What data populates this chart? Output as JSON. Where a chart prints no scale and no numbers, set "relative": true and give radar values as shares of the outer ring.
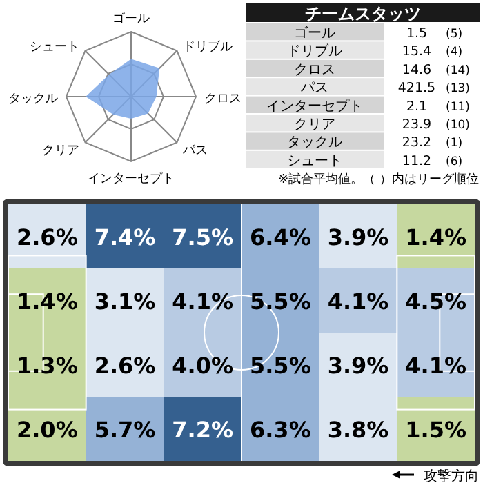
{
  "chart_data": [
    {
      "type": "radar",
      "relative": true,
      "categories": [
        "ゴール",
        "ドリブル",
        "クロス",
        "パス",
        "インターセプト",
        "クリア",
        "タックル",
        "シュート"
      ],
      "series": [
        {
          "color": "#7aa6e6",
          "values": [
            0.58,
            0.62,
            0.39,
            0.37,
            0.34,
            0.39,
            0.7,
            0.48
          ]
        }
      ]
    },
    {
      "type": "other",
      "title": "チームスタッツ",
      "categories": [
        "ゴール",
        "ドリブル",
        "クロス",
        "パス",
        "インターセプト",
        "クリア",
        "タックル",
        "シュート"
      ],
      "data_labels": true,
      "series": [
        {
          "values": [
            1.5,
            15.4,
            14.6,
            421.5,
            2.1,
            23.9,
            23.2,
            11.2
          ]
        },
        {
          "values": [
            5,
            4,
            14,
            13,
            11,
            10,
            1,
            6
          ],
          "value_labels": [
            "(5)",
            "(4)",
            "(14)",
            "(13)",
            "(11)",
            "(10)",
            "(1)",
            "(6)"
          ]
        }
      ],
      "annotations": [
        "※試合平均値。（ ）内はリーグ順位"
      ]
    },
    {
      "type": "heatmap",
      "categories": [
        null,
        null,
        null,
        null,
        null,
        null
      ],
      "y_categories": [
        null,
        null,
        null,
        null
      ],
      "cells": [
        [
          2.6,
          7.4,
          7.5,
          6.4,
          3.9,
          1.4
        ],
        [
          1.4,
          3.1,
          4.1,
          5.5,
          4.1,
          4.5
        ],
        [
          1.3,
          2.6,
          4.0,
          5.5,
          3.9,
          4.1
        ],
        [
          2.0,
          5.7,
          7.2,
          6.3,
          3.8,
          1.5
        ]
      ],
      "cell_labels": [
        [
          "2.6%",
          "7.4%",
          "7.5%",
          "6.4%",
          "3.9%",
          "1.4%"
        ],
        [
          "1.4%",
          "3.1%",
          "4.1%",
          "5.5%",
          "4.1%",
          "4.5%"
        ],
        [
          "1.3%",
          "2.6%",
          "4.0%",
          "5.5%",
          "3.9%",
          "4.1%"
        ],
        [
          "2.0%",
          "5.7%",
          "7.2%",
          "6.3%",
          "3.8%",
          "1.5%"
        ]
      ],
      "annotations": [
        "攻撃方向"
      ]
    }
  ]
}
